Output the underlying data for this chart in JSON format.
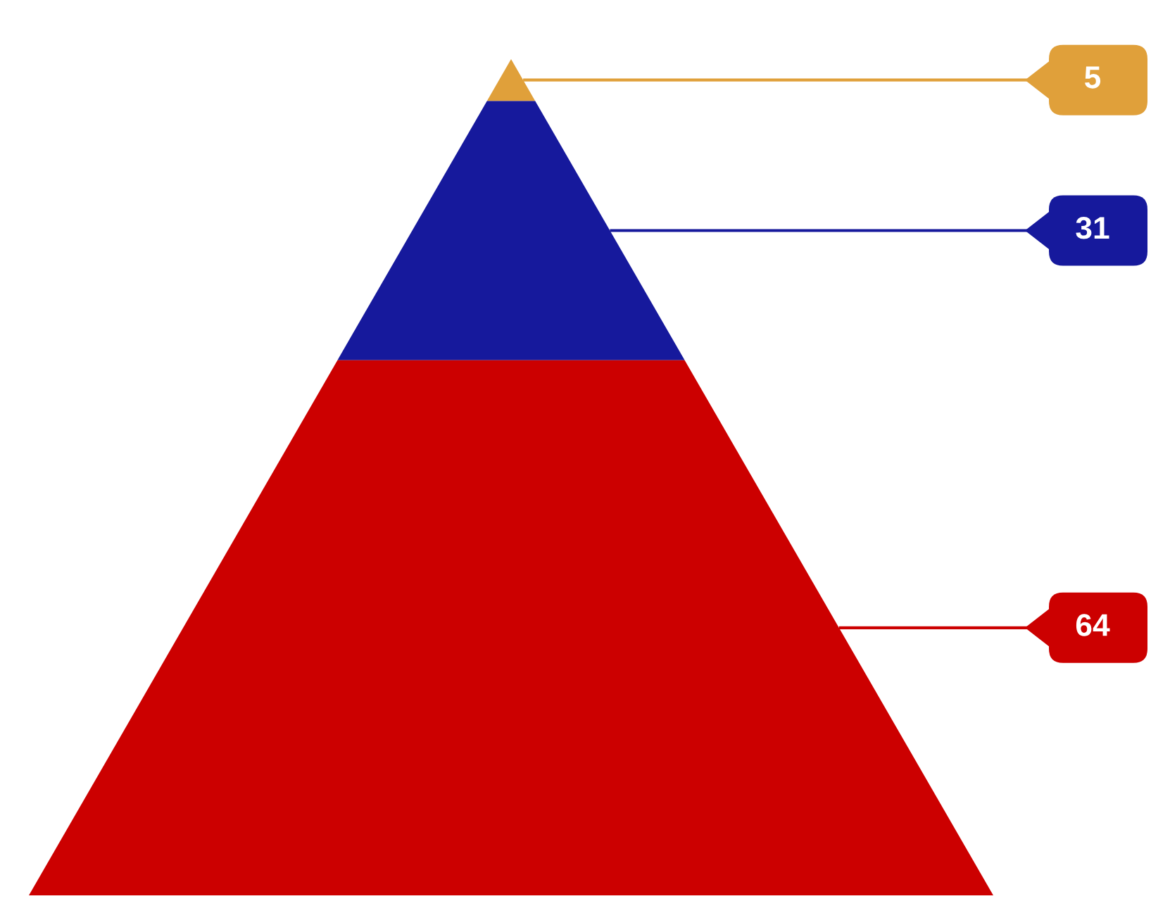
{
  "chart_data": {
    "type": "other",
    "categories": [
      null,
      null,
      null
    ],
    "values": [
      5,
      31,
      64
    ],
    "colors": [
      "#e0a03a",
      "#16199c",
      "#cc0000"
    ],
    "data_labels": true
  }
}
